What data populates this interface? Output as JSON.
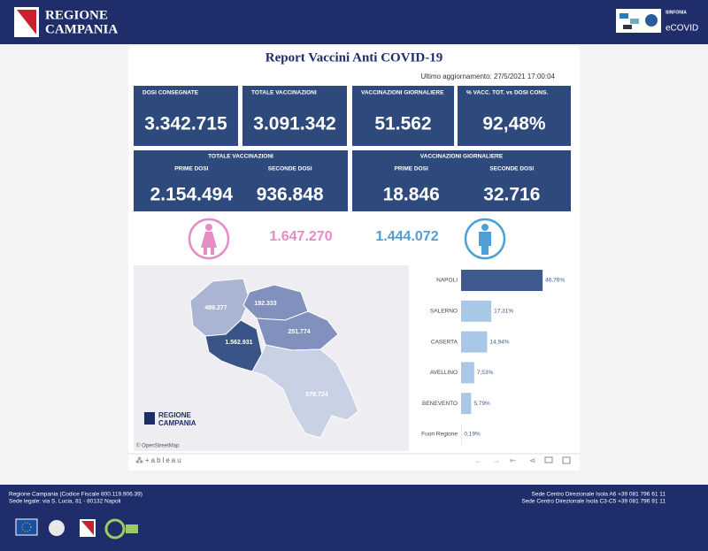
{
  "header": {
    "brand_line1": "REGIONE",
    "brand_line2": "CAMPANIA",
    "partner_small": "SINFONIA",
    "partner_name": "eCOVID"
  },
  "report": {
    "title": "Report Vaccini Anti COVID-19",
    "updated": "Ultimo aggiornamento: 27/5/2021 17:00:04"
  },
  "kpis": [
    {
      "label": "DOSI  CONSEGNATE",
      "value": "3.342.715"
    },
    {
      "label": "TOTALE VACCINAZIONI",
      "value": "3.091.342"
    },
    {
      "label": "VACCINAZIONI GIORNALIERE",
      "value": "51.562"
    },
    {
      "label": "% VACC. TOT. vs DOSI CONS.",
      "value": "92,48%"
    }
  ],
  "panels": [
    {
      "title": "TOTALE VACCINAZIONI",
      "items": [
        {
          "label": "PRIME DOSI",
          "value": "2.154.494"
        },
        {
          "label": "SECONDE DOSI",
          "value": "936.848"
        }
      ]
    },
    {
      "title": "VACCINAZIONI GIORNALIERE",
      "items": [
        {
          "label": "PRIME DOSI",
          "value": "18.846"
        },
        {
          "label": "SECONDE DOSI",
          "value": "32.716"
        }
      ]
    }
  ],
  "gender": {
    "female": "1.647.270",
    "male": "1.444.072"
  },
  "map": {
    "labels": [
      "499.277",
      "192.333",
      "251.774",
      "1.562.931",
      "578.724"
    ],
    "logo_line1": "REGIONE",
    "logo_line2": "CAMPANIA",
    "credit": "© OpenStreetMap"
  },
  "provinces": {
    "categories": [
      "NAPOLI",
      "SALERNO",
      "CASERTA",
      "AVELLINO",
      "BENEVENTO",
      "Fuori Regione"
    ],
    "values": [
      46.76,
      17.31,
      14.94,
      7.53,
      5.79,
      0.19
    ],
    "value_labels": [
      "46,76%",
      "17,31%",
      "14,94%",
      "7,53%",
      "5,79%",
      "0,19%"
    ]
  },
  "toolbar": {
    "brand": "+ableau"
  },
  "footer": {
    "left": [
      "Regione Campania (Codice Fiscale 800.119.906.39)",
      "Sede legale: via S. Lucia, 81 - 80132 Napoli"
    ],
    "right": [
      "Sede Centro Direzionale Isola A6 +39 081 796 61 11",
      "Sede Centro Direzionale Isola C3-C5 +39 081 796 91 11"
    ]
  }
}
